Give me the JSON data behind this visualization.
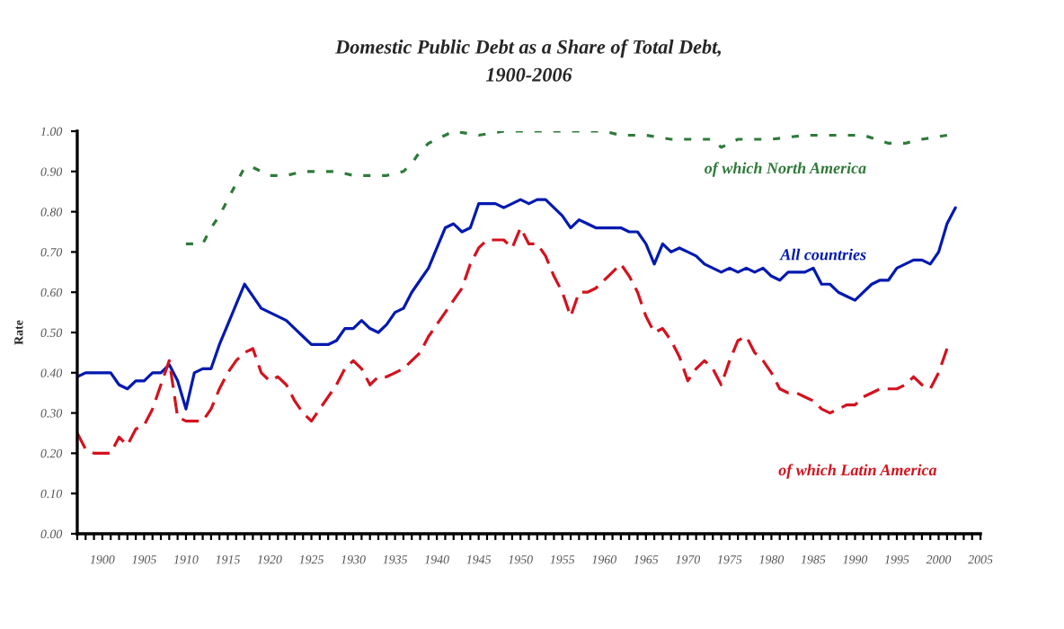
{
  "chart_data": {
    "type": "line",
    "title": "Domestic Public Debt as a Share of Total Debt,\n1900-2006",
    "ylabel": "Rate",
    "xlim": [
      1897,
      2005
    ],
    "xticks": [
      {
        "value": 1897,
        "label": null
      },
      {
        "value": 1898,
        "label": null
      },
      {
        "value": 1899,
        "label": null
      },
      1900,
      {
        "value": 1901,
        "label": null
      },
      {
        "value": 1902,
        "label": null
      },
      {
        "value": 1903,
        "label": null
      },
      {
        "value": 1904,
        "label": null
      },
      1905,
      {
        "value": 1906,
        "label": null
      },
      {
        "value": 1907,
        "label": null
      },
      {
        "value": 1908,
        "label": null
      },
      {
        "value": 1909,
        "label": null
      },
      1910,
      {
        "value": 1911,
        "label": null
      },
      {
        "value": 1912,
        "label": null
      },
      {
        "value": 1913,
        "label": null
      },
      {
        "value": 1914,
        "label": null
      },
      1915,
      {
        "value": 1916,
        "label": null
      },
      {
        "value": 1917,
        "label": null
      },
      {
        "value": 1918,
        "label": null
      },
      {
        "value": 1919,
        "label": null
      },
      1920,
      {
        "value": 1921,
        "label": null
      },
      {
        "value": 1922,
        "label": null
      },
      {
        "value": 1923,
        "label": null
      },
      {
        "value": 1924,
        "label": null
      },
      1925,
      {
        "value": 1926,
        "label": null
      },
      {
        "value": 1927,
        "label": null
      },
      {
        "value": 1928,
        "label": null
      },
      {
        "value": 1929,
        "label": null
      },
      1930,
      {
        "value": 1931,
        "label": null
      },
      {
        "value": 1932,
        "label": null
      },
      {
        "value": 1933,
        "label": null
      },
      {
        "value": 1934,
        "label": null
      },
      1935,
      {
        "value": 1936,
        "label": null
      },
      {
        "value": 1937,
        "label": null
      },
      {
        "value": 1938,
        "label": null
      },
      {
        "value": 1939,
        "label": null
      },
      1940,
      {
        "value": 1941,
        "label": null
      },
      {
        "value": 1942,
        "label": null
      },
      {
        "value": 1943,
        "label": null
      },
      {
        "value": 1944,
        "label": null
      },
      1945,
      {
        "value": 1946,
        "label": null
      },
      {
        "value": 1947,
        "label": null
      },
      {
        "value": 1948,
        "label": null
      },
      {
        "value": 1949,
        "label": null
      },
      1950,
      {
        "value": 1951,
        "label": null
      },
      {
        "value": 1952,
        "label": null
      },
      {
        "value": 1953,
        "label": null
      },
      {
        "value": 1954,
        "label": null
      },
      1955,
      {
        "value": 1956,
        "label": null
      },
      {
        "value": 1957,
        "label": null
      },
      {
        "value": 1958,
        "label": null
      },
      {
        "value": 1959,
        "label": null
      },
      1960,
      {
        "value": 1961,
        "label": null
      },
      {
        "value": 1962,
        "label": null
      },
      {
        "value": 1963,
        "label": null
      },
      {
        "value": 1964,
        "label": null
      },
      1965,
      {
        "value": 1966,
        "label": null
      },
      {
        "value": 1967,
        "label": null
      },
      {
        "value": 1968,
        "label": null
      },
      {
        "value": 1969,
        "label": null
      },
      1970,
      {
        "value": 1971,
        "label": null
      },
      {
        "value": 1972,
        "label": null
      },
      {
        "value": 1973,
        "label": null
      },
      {
        "value": 1974,
        "label": null
      },
      1975,
      {
        "value": 1976,
        "label": null
      },
      {
        "value": 1977,
        "label": null
      },
      {
        "value": 1978,
        "label": null
      },
      {
        "value": 1979,
        "label": null
      },
      1980,
      {
        "value": 1981,
        "label": null
      },
      {
        "value": 1982,
        "label": null
      },
      {
        "value": 1983,
        "label": null
      },
      {
        "value": 1984,
        "label": null
      },
      1985,
      {
        "value": 1986,
        "label": null
      },
      {
        "value": 1987,
        "label": null
      },
      {
        "value": 1988,
        "label": null
      },
      {
        "value": 1989,
        "label": null
      },
      1990,
      {
        "value": 1991,
        "label": null
      },
      {
        "value": 1992,
        "label": null
      },
      {
        "value": 1993,
        "label": null
      },
      {
        "value": 1994,
        "label": null
      },
      1995,
      {
        "value": 1996,
        "label": null
      },
      {
        "value": 1997,
        "label": null
      },
      {
        "value": 1998,
        "label": null
      },
      {
        "value": 1999,
        "label": null
      },
      2000,
      {
        "value": 2001,
        "label": null
      },
      {
        "value": 2002,
        "label": null
      },
      {
        "value": 2003,
        "label": null
      },
      {
        "value": 2004,
        "label": null
      },
      2005
    ],
    "ylim": [
      0,
      1
    ],
    "yticks": [
      {
        "value": 0,
        "label": "0.00"
      },
      {
        "value": 0.1,
        "label": "0.10"
      },
      {
        "value": 0.2,
        "label": "0.20"
      },
      {
        "value": 0.3,
        "label": "0.30"
      },
      {
        "value": 0.4,
        "label": "0.40"
      },
      {
        "value": 0.5,
        "label": "0.50"
      },
      {
        "value": 0.6,
        "label": "0.60"
      },
      {
        "value": 0.7,
        "label": "0.70"
      },
      {
        "value": 0.8,
        "label": "0.80"
      },
      {
        "value": 0.9,
        "label": "0.90"
      },
      {
        "value": 1,
        "label": "1.00"
      }
    ],
    "series": [
      {
        "name": "All countries",
        "color": "#0019b0",
        "line_style": "solid",
        "x": [
          1897,
          1898,
          1899,
          1900,
          1901,
          1902,
          1903,
          1904,
          1905,
          1906,
          1907,
          1908,
          1909,
          1910,
          1911,
          1912,
          1913,
          1914,
          1915,
          1916,
          1917,
          1918,
          1919,
          1920,
          1921,
          1922,
          1923,
          1924,
          1925,
          1926,
          1927,
          1928,
          1929,
          1930,
          1931,
          1932,
          1933,
          1934,
          1935,
          1936,
          1937,
          1938,
          1939,
          1940,
          1941,
          1942,
          1943,
          1944,
          1945,
          1946,
          1947,
          1948,
          1949,
          1950,
          1951,
          1952,
          1953,
          1954,
          1955,
          1956,
          1957,
          1958,
          1959,
          1960,
          1961,
          1962,
          1963,
          1964,
          1965,
          1966,
          1967,
          1968,
          1969,
          1970,
          1971,
          1972,
          1973,
          1974,
          1975,
          1976,
          1977,
          1978,
          1979,
          1980,
          1981,
          1982,
          1983,
          1984,
          1985,
          1986,
          1987,
          1988,
          1989,
          1990,
          1991,
          1992,
          1993,
          1994,
          1995,
          1996,
          1997,
          1998,
          1999,
          2000,
          2001,
          2002
        ],
        "values": [
          0.39,
          0.4,
          0.4,
          0.4,
          0.4,
          0.37,
          0.36,
          0.38,
          0.38,
          0.4,
          0.4,
          0.42,
          0.38,
          0.31,
          0.4,
          0.41,
          0.41,
          0.47,
          0.52,
          0.57,
          0.62,
          0.59,
          0.56,
          0.55,
          0.54,
          0.53,
          0.51,
          0.49,
          0.47,
          0.47,
          0.47,
          0.48,
          0.51,
          0.51,
          0.53,
          0.51,
          0.5,
          0.52,
          0.55,
          0.56,
          0.6,
          0.63,
          0.66,
          0.71,
          0.76,
          0.77,
          0.75,
          0.76,
          0.82,
          0.82,
          0.82,
          0.81,
          0.82,
          0.83,
          0.82,
          0.83,
          0.83,
          0.81,
          0.79,
          0.76,
          0.78,
          0.77,
          0.76,
          0.76,
          0.76,
          0.76,
          0.75,
          0.75,
          0.72,
          0.67,
          0.72,
          0.7,
          0.71,
          0.7,
          0.69,
          0.67,
          0.66,
          0.65,
          0.66,
          0.65,
          0.66,
          0.65,
          0.66,
          0.64,
          0.63,
          0.65,
          0.65,
          0.65,
          0.66,
          0.62,
          0.62,
          0.6,
          0.59,
          0.58,
          0.6,
          0.62,
          0.63,
          0.63,
          0.66,
          0.67,
          0.68,
          0.68,
          0.67,
          0.7,
          0.77,
          0.81
        ]
      },
      {
        "name": "of which Latin America",
        "color": "#d4121e",
        "line_style": "dashed",
        "x": [
          1897,
          1898,
          1899,
          1900,
          1901,
          1902,
          1903,
          1904,
          1905,
          1906,
          1907,
          1908,
          1909,
          1910,
          1911,
          1912,
          1913,
          1914,
          1915,
          1916,
          1917,
          1918,
          1919,
          1920,
          1921,
          1922,
          1923,
          1924,
          1925,
          1926,
          1927,
          1928,
          1929,
          1930,
          1931,
          1932,
          1933,
          1934,
          1935,
          1936,
          1937,
          1938,
          1939,
          1940,
          1941,
          1942,
          1943,
          1944,
          1945,
          1946,
          1947,
          1948,
          1949,
          1950,
          1951,
          1952,
          1953,
          1954,
          1955,
          1956,
          1957,
          1958,
          1959,
          1960,
          1961,
          1962,
          1963,
          1964,
          1965,
          1966,
          1967,
          1968,
          1969,
          1970,
          1971,
          1972,
          1973,
          1974,
          1975,
          1976,
          1977,
          1978,
          1979,
          1980,
          1981,
          1982,
          1983,
          1984,
          1985,
          1986,
          1987,
          1988,
          1989,
          1990,
          1991,
          1992,
          1993,
          1994,
          1995,
          1996,
          1997,
          1998,
          1999,
          2000,
          2001
        ],
        "values": [
          0.25,
          0.21,
          0.2,
          0.2,
          0.2,
          0.24,
          0.22,
          0.26,
          0.27,
          0.31,
          0.37,
          0.43,
          0.29,
          0.28,
          0.28,
          0.28,
          0.31,
          0.36,
          0.4,
          0.43,
          0.45,
          0.46,
          0.4,
          0.38,
          0.39,
          0.37,
          0.33,
          0.3,
          0.28,
          0.31,
          0.34,
          0.37,
          0.41,
          0.43,
          0.41,
          0.37,
          0.39,
          0.39,
          0.4,
          0.41,
          0.43,
          0.45,
          0.49,
          0.52,
          0.55,
          0.58,
          0.61,
          0.67,
          0.71,
          0.73,
          0.73,
          0.73,
          0.71,
          0.76,
          0.72,
          0.72,
          0.69,
          0.64,
          0.6,
          0.54,
          0.6,
          0.6,
          0.61,
          0.63,
          0.65,
          0.67,
          0.64,
          0.6,
          0.54,
          0.5,
          0.51,
          0.48,
          0.44,
          0.38,
          0.41,
          0.43,
          0.41,
          0.37,
          0.43,
          0.48,
          0.49,
          0.45,
          0.43,
          0.4,
          0.36,
          0.35,
          0.35,
          0.34,
          0.33,
          0.31,
          0.3,
          0.31,
          0.32,
          0.32,
          0.34,
          0.35,
          0.36,
          0.36,
          0.36,
          0.37,
          0.39,
          0.37,
          0.36,
          0.4,
          0.46
        ]
      },
      {
        "name": "of which North America",
        "color": "#2f7a3a",
        "line_style": "dotted",
        "x": [
          1910,
          1911,
          1912,
          1913,
          1914,
          1915,
          1916,
          1917,
          1918,
          1919,
          1920,
          1922,
          1924,
          1926,
          1928,
          1930,
          1932,
          1934,
          1936,
          1937,
          1938,
          1939,
          1940,
          1941,
          1942,
          1945,
          1948,
          1952,
          1956,
          1960,
          1962,
          1965,
          1968,
          1971,
          1973,
          1974,
          1976,
          1980,
          1984,
          1987,
          1989,
          1991,
          1994,
          1996,
          1998,
          2001
        ],
        "values": [
          0.72,
          0.72,
          0.72,
          0.76,
          0.79,
          0.83,
          0.87,
          0.91,
          0.91,
          0.9,
          0.89,
          0.89,
          0.9,
          0.9,
          0.9,
          0.89,
          0.89,
          0.89,
          0.9,
          0.92,
          0.95,
          0.97,
          0.98,
          0.99,
          1.0,
          0.99,
          1.0,
          1.0,
          1.0,
          1.0,
          0.99,
          0.99,
          0.98,
          0.98,
          0.98,
          0.96,
          0.98,
          0.98,
          0.99,
          0.99,
          0.99,
          0.99,
          0.97,
          0.97,
          0.98,
          0.99
        ]
      }
    ]
  }
}
